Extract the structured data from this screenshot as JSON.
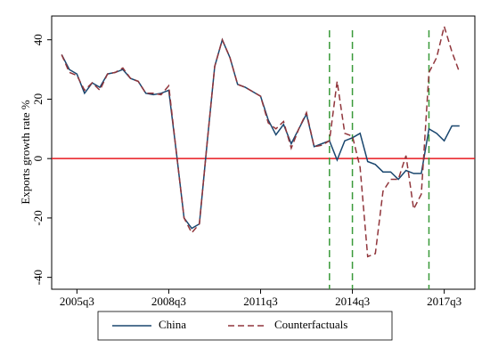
{
  "chart_data": {
    "type": "line",
    "ylabel": "Exports growth rate %",
    "categories": [
      null,
      null,
      "2005q3",
      null,
      null,
      null,
      null,
      null,
      null,
      null,
      null,
      null,
      null,
      null,
      "2008q3",
      null,
      null,
      null,
      null,
      null,
      null,
      null,
      null,
      null,
      null,
      null,
      "2011q3",
      null,
      null,
      null,
      null,
      null,
      null,
      null,
      null,
      null,
      null,
      null,
      "2014q3",
      null,
      null,
      null,
      null,
      null,
      null,
      null,
      null,
      null,
      null,
      null,
      "2017q3",
      null,
      null
    ],
    "series": [
      {
        "name": "China",
        "color": "#1a476f",
        "dash": false,
        "values": [
          35,
          30,
          28.5,
          22,
          25.5,
          24,
          28.5,
          29,
          30,
          27,
          26,
          22,
          21.5,
          22,
          23,
          2,
          -20,
          -23.5,
          -22,
          5,
          31,
          40,
          34,
          25,
          24,
          22.5,
          21,
          13,
          8,
          11.5,
          5,
          10,
          15,
          4,
          5,
          6,
          -0.5,
          6,
          7,
          8.5,
          -1,
          -2,
          -4.5,
          -4.5,
          -7,
          -4,
          -5,
          -5,
          10,
          8.5,
          6,
          11,
          11
        ]
      },
      {
        "name": "Counterfactuals",
        "color": "#90353b",
        "dash": true,
        "values": [
          35,
          29,
          28,
          23,
          25.5,
          23,
          28.5,
          29,
          30.5,
          27,
          26,
          22,
          22,
          21.5,
          24.5,
          2,
          -20,
          -25,
          -22,
          5,
          31,
          40,
          34,
          25,
          24,
          22.5,
          21,
          12,
          10,
          12.5,
          3.5,
          10,
          15.5,
          4,
          4.5,
          6,
          26,
          8.5,
          7.5,
          -3,
          -33,
          -32,
          -11,
          -7,
          -7,
          1,
          -17,
          -12,
          29,
          34,
          44.5,
          36,
          29
        ]
      }
    ],
    "xlim": [
      -1.3,
      54
    ],
    "ylim": [
      -44,
      48
    ],
    "yticks": [
      -40,
      -20,
      0,
      20,
      40
    ],
    "hline": 0,
    "hline_color": "#e8191f",
    "vlines": [
      35,
      38,
      48
    ],
    "vline_color": "#3a9a3a",
    "legend": "bottom"
  }
}
